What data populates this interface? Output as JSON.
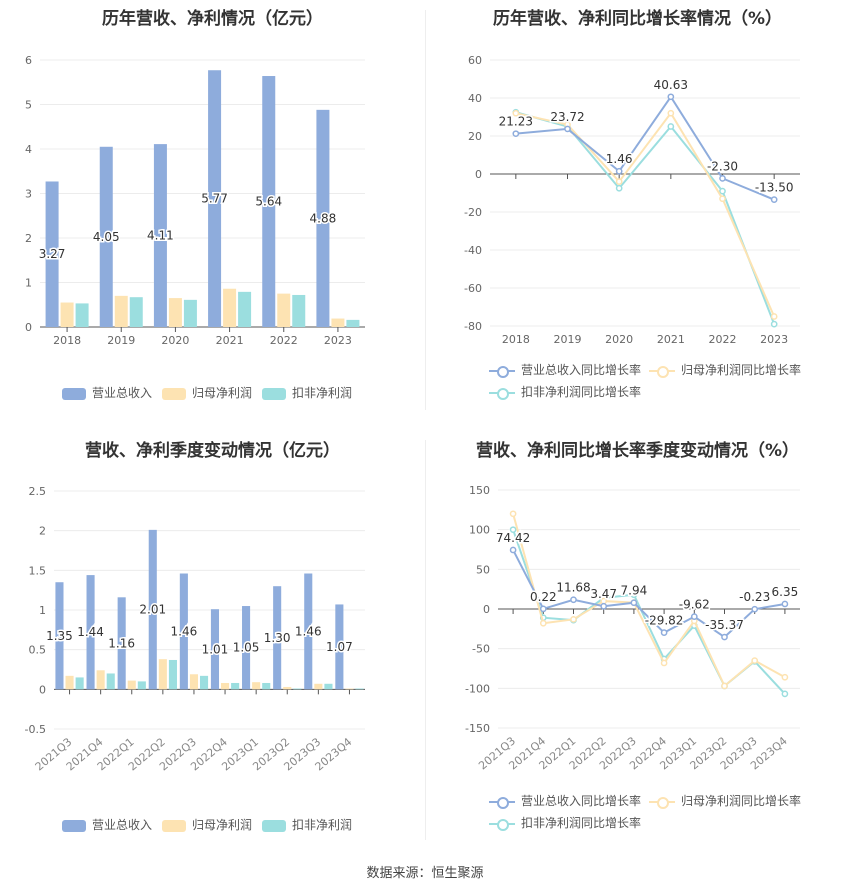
{
  "source_label": "数据来源：恒生聚源",
  "colors": {
    "s1": "#8eacdc",
    "s2": "#fde3b2",
    "s3": "#9bdedf",
    "line1": "#8eacdc",
    "line2": "#fde3b2",
    "line3": "#9bdedf"
  },
  "chart_data": [
    {
      "id": "annual_revenue_profit",
      "type": "bar",
      "title": "历年营收、净利情况（亿元）",
      "categories": [
        "2018",
        "2019",
        "2020",
        "2021",
        "2022",
        "2023"
      ],
      "ylim": [
        0,
        6
      ],
      "yticks": [
        0,
        1,
        2,
        3,
        4,
        5,
        6
      ],
      "series": [
        {
          "name": "营业总收入",
          "values": [
            3.27,
            4.05,
            4.11,
            5.77,
            5.64,
            4.88
          ],
          "labels": [
            "3.27",
            "4.05",
            "4.11",
            "5.77",
            "5.64",
            "4.88"
          ]
        },
        {
          "name": "归母净利润",
          "values": [
            0.55,
            0.7,
            0.65,
            0.86,
            0.75,
            0.19
          ]
        },
        {
          "name": "扣非净利润",
          "values": [
            0.53,
            0.67,
            0.61,
            0.79,
            0.72,
            0.16
          ]
        }
      ]
    },
    {
      "id": "annual_growth",
      "type": "line",
      "title": "历年营收、净利同比增长率情况（%）",
      "categories": [
        "2018",
        "2019",
        "2020",
        "2021",
        "2022",
        "2023"
      ],
      "ylim": [
        -80,
        60
      ],
      "yticks": [
        -80,
        -60,
        -40,
        -20,
        0,
        20,
        40,
        60
      ],
      "series": [
        {
          "name": "营业总收入同比增长率",
          "values": [
            21.23,
            23.72,
            1.46,
            40.63,
            -2.3,
            -13.5
          ],
          "labels": [
            "21.23",
            "23.72",
            "1.46",
            "40.63",
            "-2.30",
            "-13.50"
          ]
        },
        {
          "name": "归母净利润同比增长率",
          "values": [
            32,
            26,
            -4,
            32,
            -13,
            -75
          ]
        },
        {
          "name": "扣非净利润同比增长率",
          "values": [
            32.5,
            25,
            -7.5,
            25,
            -9,
            -79
          ]
        }
      ]
    },
    {
      "id": "quarterly_revenue_profit",
      "type": "bar",
      "title": "营收、净利季度变动情况（亿元）",
      "categories": [
        "2021Q3",
        "2021Q4",
        "2022Q1",
        "2022Q2",
        "2022Q3",
        "2022Q4",
        "2023Q1",
        "2023Q2",
        "2023Q3",
        "2023Q4"
      ],
      "ylim": [
        -0.5,
        2.5
      ],
      "yticks": [
        -0.5,
        0,
        0.5,
        1,
        1.5,
        2,
        2.5
      ],
      "series": [
        {
          "name": "营业总收入",
          "values": [
            1.35,
            1.44,
            1.16,
            2.01,
            1.46,
            1.01,
            1.05,
            1.3,
            1.46,
            1.07
          ],
          "labels": [
            "1.35",
            "1.44",
            "1.16",
            "2.01",
            "1.46",
            "1.01",
            "1.05",
            "1.30",
            "1.46",
            "1.07"
          ]
        },
        {
          "name": "归母净利润",
          "values": [
            0.17,
            0.24,
            0.11,
            0.38,
            0.19,
            0.08,
            0.09,
            0.03,
            0.07,
            0.01
          ]
        },
        {
          "name": "扣非净利润",
          "values": [
            0.15,
            0.2,
            0.1,
            0.37,
            0.17,
            0.08,
            0.08,
            0.01,
            0.07,
            0.01
          ]
        }
      ]
    },
    {
      "id": "quarterly_growth",
      "type": "line",
      "title": "营收、净利同比增长率季度变动情况（%）",
      "categories": [
        "2021Q3",
        "2021Q4",
        "2022Q1",
        "2022Q2",
        "2022Q3",
        "2022Q4",
        "2023Q1",
        "2023Q2",
        "2023Q3",
        "2023Q4"
      ],
      "ylim": [
        -150,
        150
      ],
      "yticks": [
        -150,
        -100,
        -50,
        0,
        50,
        100,
        150
      ],
      "series": [
        {
          "name": "营业总收入同比增长率",
          "values": [
            74.42,
            0.22,
            11.68,
            3.47,
            7.94,
            -29.82,
            -9.62,
            -35.37,
            -0.23,
            6.35
          ],
          "labels": [
            "74.42",
            "0.22",
            "11.68",
            "3.47",
            "7.94",
            "-29.82",
            "-9.62",
            "-35.37",
            "-0.23",
            "6.35"
          ]
        },
        {
          "name": "归母净利润同比增长率",
          "values": [
            120,
            -18,
            -13,
            10,
            8,
            -68,
            -15,
            -97,
            -65,
            -86
          ]
        },
        {
          "name": "扣非净利润同比增长率",
          "values": [
            100,
            -11,
            -14,
            14,
            18,
            -63,
            -21,
            -97,
            -66,
            -107
          ]
        }
      ]
    }
  ]
}
